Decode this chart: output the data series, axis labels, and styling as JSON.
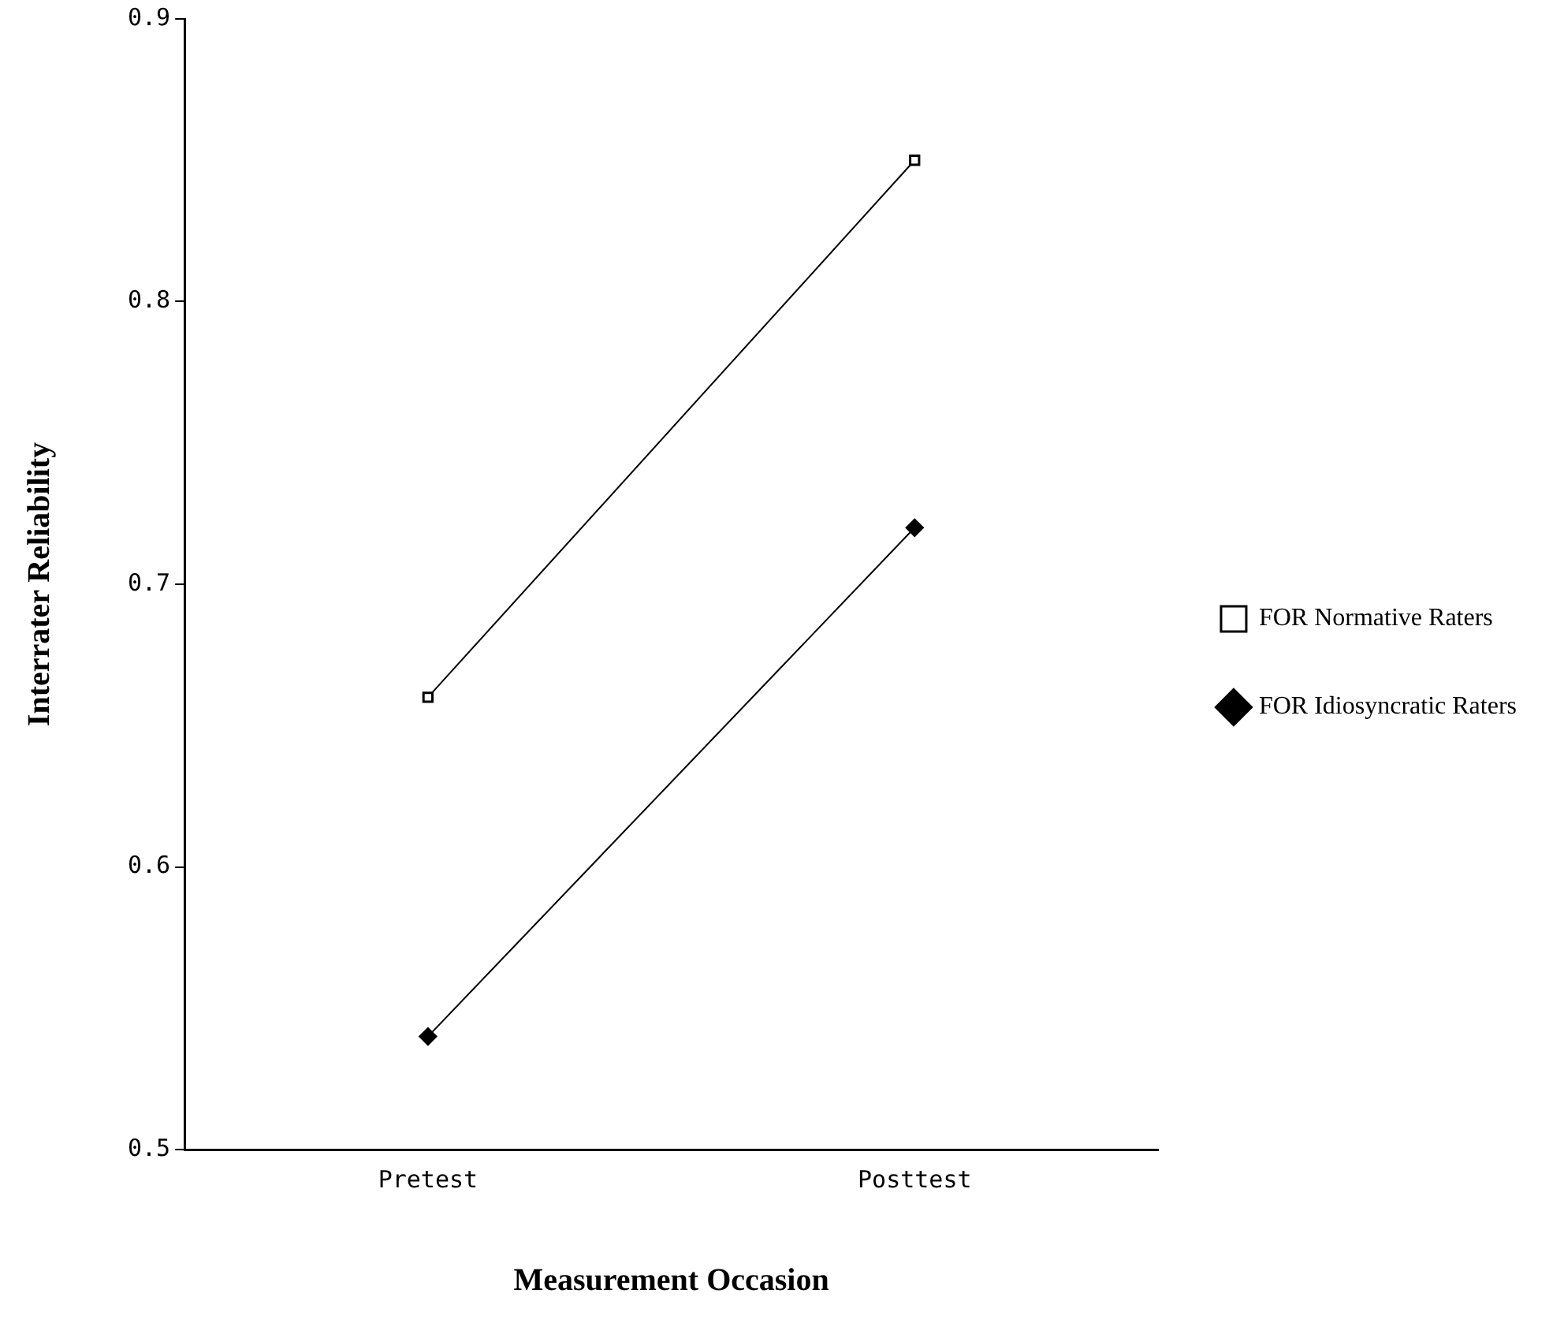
{
  "chart_data": {
    "type": "line",
    "xlabel": "Measurement Occasion",
    "ylabel": "Interrater Reliability",
    "categories": [
      "Pretest",
      "Posttest"
    ],
    "series": [
      {
        "name": "FOR Normative Raters",
        "color": "#000000",
        "marker": "square",
        "values": [
          0.66,
          0.85
        ]
      },
      {
        "name": "FOR Idiosyncratic Raters",
        "color": "#000000",
        "marker": "diamond",
        "values": [
          0.54,
          0.72
        ]
      }
    ],
    "ylim": [
      0.5,
      0.9
    ],
    "yticks": [
      0.5,
      0.6,
      0.7,
      0.8,
      0.9
    ],
    "grid": false,
    "legend": "right"
  }
}
